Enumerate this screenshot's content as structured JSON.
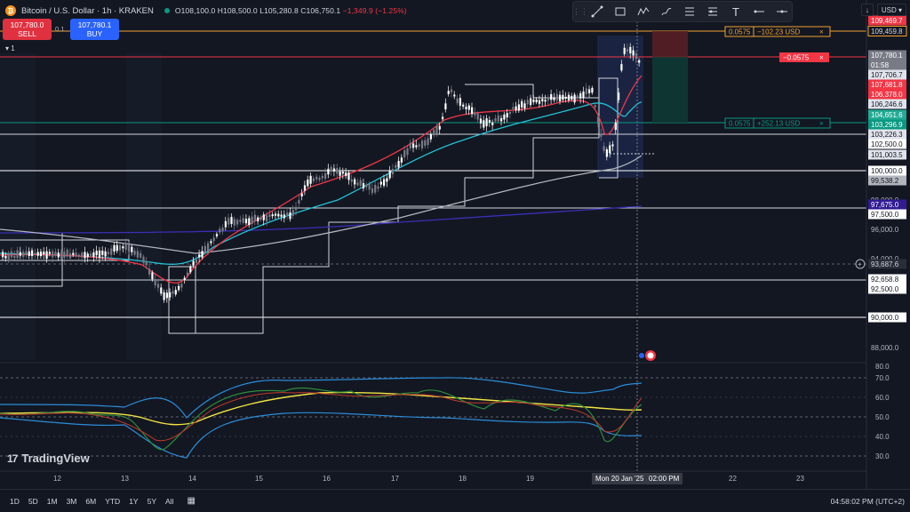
{
  "symbol": {
    "title": "Bitcoin / U.S. Dollar · 1h · KRAKEN",
    "icon": "bitcoin-icon",
    "ohlc_prefix": "O",
    "open": "108,100.0",
    "high_prefix": "H",
    "high": "108,500.0",
    "low_prefix": "L",
    "low": "105,280.8",
    "close_prefix": "C",
    "close": "106,750.1",
    "change": "−1,349.9 (−1.25%)"
  },
  "trade": {
    "sell_price": "107,780.0",
    "sell_label": "SELL",
    "buy_price": "107,780.1",
    "buy_label": "BUY",
    "spread": "0.1",
    "lot": "1"
  },
  "toolbar": {
    "tools": [
      "grip-icon",
      "trend-line-icon",
      "rectangle-icon",
      "wave-icon",
      "brush-icon",
      "fib-icon",
      "position-icon",
      "text-icon",
      "horizontal-ray-icon",
      "horizontal-line-icon"
    ]
  },
  "top_right": {
    "currency": "USD"
  },
  "position_labels": {
    "target_qty": "0.0575",
    "target_pnl": "+252.13 USD",
    "stop_qty": "0.0575",
    "stop_pnl": "−102.23 USD",
    "entry_qty": "−0.0575"
  },
  "price_axis": {
    "ticks": [
      "98,000.0",
      "96,000.0",
      "94,000.0",
      "88,000.0",
      "80.0",
      "70.0",
      "60.0",
      "50.0",
      "40.0",
      "30.0"
    ],
    "levels": [
      {
        "text": "109,469.7",
        "color": "#f23645",
        "text_color": "#ffffff"
      },
      {
        "text": "109,459.8",
        "color": "#131722",
        "text_color": "#d1d4dc",
        "border": "#f0a030"
      },
      {
        "text": "107,780.1",
        "color": "#787b86",
        "text_color": "#ffffff"
      },
      {
        "text": "01:58",
        "color": "#787b86",
        "text_color": "#ffffff"
      },
      {
        "text": "107,706.7",
        "color": "#e0e3eb",
        "text_color": "#131722"
      },
      {
        "text": "107,681.8",
        "color": "#f23645",
        "text_color": "#ffffff"
      },
      {
        "text": "106,378.0",
        "color": "#f23645",
        "text_color": "#ffffff"
      },
      {
        "text": "106,246.6",
        "color": "#e0e3eb",
        "text_color": "#131722"
      },
      {
        "text": "104,651.6",
        "color": "#22ab94",
        "text_color": "#ffffff"
      },
      {
        "text": "103,296.9",
        "color": "#089981",
        "text_color": "#ffffff"
      },
      {
        "text": "103,226.3",
        "color": "#e0e3eb",
        "text_color": "#131722"
      },
      {
        "text": "102,500.0",
        "color": "#ffffff",
        "text_color": "#131722"
      },
      {
        "text": "101,003.5",
        "color": "#e0e3eb",
        "text_color": "#131722"
      },
      {
        "text": "100,000.0",
        "color": "#ffffff",
        "text_color": "#131722"
      },
      {
        "text": "99,538.2",
        "color": "#b2b5be",
        "text_color": "#131722"
      },
      {
        "text": "97,675.0",
        "color": "#311b92",
        "text_color": "#ffffff"
      },
      {
        "text": "97,500.0",
        "color": "#ffffff",
        "text_color": "#131722"
      },
      {
        "text": "93,687.6",
        "color": "#2a2e39",
        "text_color": "#d1d4dc"
      },
      {
        "text": "92,658.8",
        "color": "#ffffff",
        "text_color": "#131722"
      },
      {
        "text": "92,500.0",
        "color": "#ffffff",
        "text_color": "#131722"
      },
      {
        "text": "90,000.0",
        "color": "#ffffff",
        "text_color": "#131722"
      }
    ]
  },
  "time_axis": {
    "labels": [
      "12",
      "13",
      "14",
      "15",
      "16",
      "17",
      "18",
      "19",
      "22",
      "23"
    ],
    "crosshair_date": "Mon 20 Jan '25",
    "crosshair_time": "02:00 PM"
  },
  "bottom": {
    "ranges": [
      "1D",
      "5D",
      "1M",
      "3M",
      "6M",
      "YTD",
      "1Y",
      "5Y",
      "All"
    ],
    "clock": "04:58:02 PM (UTC+2)"
  },
  "logo": {
    "text": "TradingView",
    "mark": "17"
  },
  "colors": {
    "background": "#131722",
    "up": "#ffffff",
    "down": "#787b86",
    "ema_fast": "#f23645",
    "ema_mid": "#22c3d6",
    "ema_slow": "#b2b5be",
    "ema_long": "#3a2fb5",
    "rsi": "#f0e442",
    "bands": "#2b8cd8"
  }
}
